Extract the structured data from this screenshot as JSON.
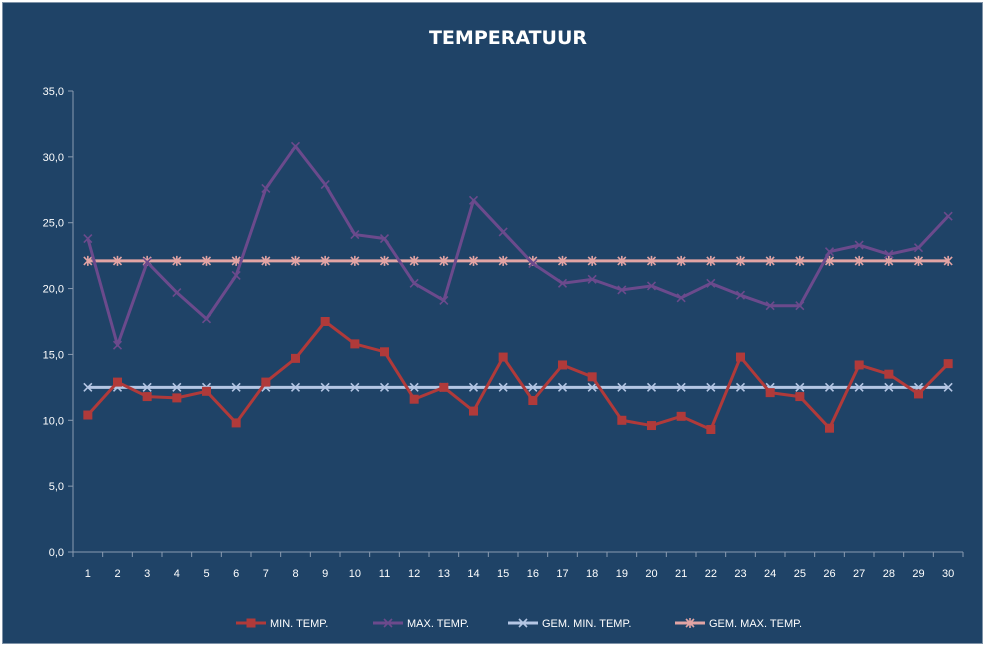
{
  "chart_data": {
    "type": "line",
    "title": "TEMPERATUUR",
    "xlabel": "",
    "ylabel": "",
    "ylim": [
      0,
      35
    ],
    "yticks": [
      "0,0",
      "5,0",
      "10,0",
      "15,0",
      "20,0",
      "25,0",
      "30,0",
      "35,0"
    ],
    "categories": [
      "1",
      "2",
      "3",
      "4",
      "5",
      "6",
      "7",
      "8",
      "9",
      "10",
      "11",
      "12",
      "13",
      "14",
      "15",
      "16",
      "17",
      "18",
      "19",
      "20",
      "21",
      "22",
      "23",
      "24",
      "25",
      "26",
      "27",
      "28",
      "29",
      "30"
    ],
    "grid": false,
    "legend_position": "bottom",
    "series": [
      {
        "name": "MIN. TEMP.",
        "color": "#b03a3a",
        "marker": "square",
        "values": [
          10.4,
          12.9,
          11.8,
          11.7,
          12.2,
          9.8,
          12.9,
          14.7,
          17.5,
          15.8,
          15.2,
          11.6,
          12.5,
          10.7,
          14.8,
          11.5,
          14.2,
          13.3,
          10.0,
          9.6,
          10.3,
          9.3,
          14.8,
          12.1,
          11.8,
          9.4,
          14.2,
          13.5,
          12.0,
          14.3
        ]
      },
      {
        "name": "MAX. TEMP.",
        "color": "#6b4a8c",
        "marker": "x",
        "values": [
          23.8,
          15.7,
          22.0,
          19.7,
          17.7,
          21.0,
          27.6,
          30.8,
          27.9,
          24.1,
          23.8,
          20.4,
          19.1,
          26.7,
          24.3,
          21.9,
          20.4,
          20.7,
          19.9,
          20.2,
          19.3,
          20.4,
          19.5,
          18.7,
          18.7,
          22.8,
          23.3,
          22.6,
          23.1,
          25.5
        ]
      },
      {
        "name": "GEM. MIN. TEMP.",
        "color": "#b4c6e4",
        "marker": "x",
        "values": [
          12.5,
          12.5,
          12.5,
          12.5,
          12.5,
          12.5,
          12.5,
          12.5,
          12.5,
          12.5,
          12.5,
          12.5,
          12.5,
          12.5,
          12.5,
          12.5,
          12.5,
          12.5,
          12.5,
          12.5,
          12.5,
          12.5,
          12.5,
          12.5,
          12.5,
          12.5,
          12.5,
          12.5,
          12.5,
          12.5
        ]
      },
      {
        "name": "GEM. MAX. TEMP.",
        "color": "#e2a4a4",
        "marker": "star",
        "values": [
          22.1,
          22.1,
          22.1,
          22.1,
          22.1,
          22.1,
          22.1,
          22.1,
          22.1,
          22.1,
          22.1,
          22.1,
          22.1,
          22.1,
          22.1,
          22.1,
          22.1,
          22.1,
          22.1,
          22.1,
          22.1,
          22.1,
          22.1,
          22.1,
          22.1,
          22.1,
          22.1,
          22.1,
          22.1,
          22.1
        ]
      }
    ]
  }
}
